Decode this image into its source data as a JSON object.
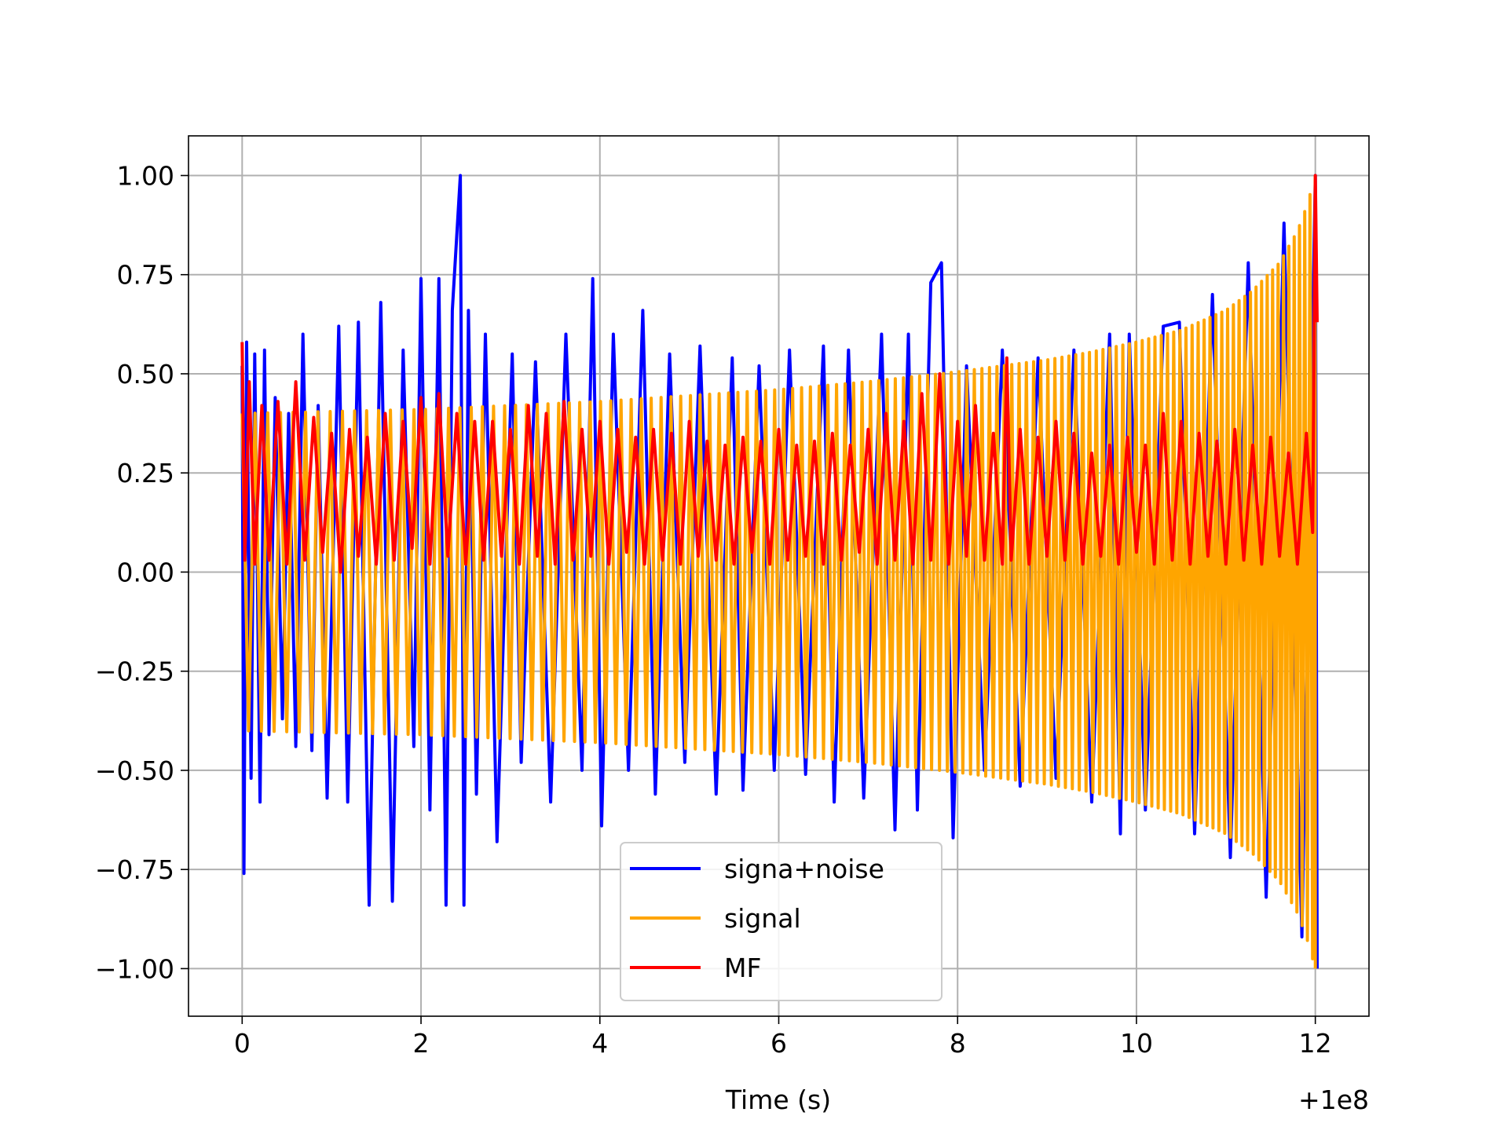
{
  "chart_data": {
    "type": "line",
    "title": "",
    "xlabel": "Time (s)",
    "ylabel": "",
    "x_offset_label": "+1e8",
    "xlim": [
      -0.6,
      12.6
    ],
    "ylim": [
      -1.12,
      1.1
    ],
    "x_ticks": [
      0,
      2,
      4,
      6,
      8,
      10,
      12
    ],
    "x_tick_labels": [
      "0",
      "2",
      "4",
      "6",
      "8",
      "10",
      "12"
    ],
    "y_ticks": [
      -1.0,
      -0.75,
      -0.5,
      -0.25,
      0.0,
      0.25,
      0.5,
      0.75,
      1.0
    ],
    "y_tick_labels": [
      "−1.00",
      "−0.75",
      "−0.50",
      "−0.25",
      "0.00",
      "0.25",
      "0.50",
      "0.75",
      "1.00"
    ],
    "grid": true,
    "legend_position": "bottom-center",
    "series": [
      {
        "name": "signa+noise",
        "color": "#0000ff",
        "x": [
          0.0,
          0.02,
          0.05,
          0.1,
          0.14,
          0.2,
          0.25,
          0.3,
          0.37,
          0.45,
          0.52,
          0.6,
          0.68,
          0.78,
          0.85,
          0.95,
          1.08,
          1.18,
          1.3,
          1.42,
          1.55,
          1.68,
          1.8,
          1.92,
          2.0,
          2.1,
          2.2,
          2.28,
          2.35,
          2.44,
          2.48,
          2.53,
          2.62,
          2.72,
          2.85,
          3.02,
          3.12,
          3.28,
          3.45,
          3.62,
          3.8,
          3.92,
          4.02,
          4.15,
          4.32,
          4.48,
          4.62,
          4.78,
          4.95,
          5.12,
          5.3,
          5.48,
          5.6,
          5.78,
          5.95,
          6.12,
          6.3,
          6.5,
          6.62,
          6.78,
          6.95,
          7.15,
          7.3,
          7.45,
          7.55,
          7.7,
          7.82,
          7.95,
          8.1,
          8.3,
          8.5,
          8.7,
          8.9,
          9.1,
          9.3,
          9.5,
          9.7,
          9.82,
          9.92,
          10.1,
          10.3,
          10.48,
          10.65,
          10.85,
          11.05,
          11.25,
          11.45,
          11.65,
          11.85,
          12.0,
          12.02
        ],
        "y": [
          0.52,
          -0.76,
          0.58,
          -0.52,
          0.55,
          -0.58,
          0.56,
          -0.41,
          0.44,
          -0.37,
          0.4,
          -0.44,
          0.6,
          -0.45,
          0.42,
          -0.57,
          0.62,
          -0.58,
          0.63,
          -0.84,
          0.68,
          -0.83,
          0.56,
          -0.44,
          0.74,
          -0.6,
          0.74,
          -0.84,
          0.66,
          1.0,
          -0.84,
          0.66,
          -0.56,
          0.6,
          -0.68,
          0.55,
          -0.48,
          0.53,
          -0.58,
          0.6,
          -0.5,
          0.74,
          -0.64,
          0.6,
          -0.5,
          0.66,
          -0.56,
          0.55,
          -0.48,
          0.57,
          -0.56,
          0.54,
          -0.55,
          0.52,
          -0.5,
          0.56,
          -0.51,
          0.57,
          -0.58,
          0.56,
          -0.57,
          0.6,
          -0.65,
          0.6,
          -0.6,
          0.73,
          0.78,
          -0.67,
          0.52,
          -0.5,
          0.56,
          -0.54,
          0.54,
          -0.52,
          0.56,
          -0.58,
          0.6,
          -0.66,
          0.6,
          -0.6,
          0.62,
          0.63,
          -0.66,
          0.7,
          -0.72,
          0.78,
          -0.82,
          0.88,
          -0.92,
          1.0,
          -1.0
        ]
      },
      {
        "name": "signal",
        "color": "#ffa500",
        "x": [
          0.0,
          1.0,
          2.0,
          3.0,
          4.0,
          5.0,
          6.0,
          7.0,
          8.0,
          8.5,
          9.0,
          9.5,
          10.0,
          10.5,
          11.0,
          11.3,
          11.6,
          11.8,
          11.9,
          11.95,
          12.0
        ],
        "y": [
          0.4,
          0.405,
          0.41,
          0.42,
          0.43,
          0.445,
          0.46,
          0.48,
          0.505,
          0.52,
          0.535,
          0.555,
          0.58,
          0.61,
          0.66,
          0.71,
          0.78,
          0.86,
          0.92,
          0.96,
          1.0
        ]
      },
      {
        "name": "MF",
        "color": "#ff0000",
        "x": [
          0.0,
          0.03,
          0.08,
          0.14,
          0.22,
          0.3,
          0.4,
          0.5,
          0.6,
          0.7,
          0.8,
          0.9,
          1.0,
          1.1,
          1.2,
          1.3,
          1.4,
          1.5,
          1.6,
          1.7,
          1.8,
          1.9,
          2.0,
          2.1,
          2.2,
          2.3,
          2.4,
          2.5,
          2.6,
          2.7,
          2.8,
          2.9,
          3.0,
          3.1,
          3.2,
          3.3,
          3.4,
          3.5,
          3.6,
          3.7,
          3.8,
          3.9,
          4.0,
          4.1,
          4.2,
          4.3,
          4.4,
          4.5,
          4.6,
          4.7,
          4.8,
          4.9,
          5.0,
          5.1,
          5.2,
          5.3,
          5.4,
          5.5,
          5.6,
          5.7,
          5.8,
          5.9,
          6.0,
          6.1,
          6.2,
          6.3,
          6.4,
          6.5,
          6.6,
          6.7,
          6.8,
          6.9,
          7.0,
          7.1,
          7.2,
          7.3,
          7.4,
          7.5,
          7.6,
          7.7,
          7.8,
          7.9,
          8.0,
          8.1,
          8.2,
          8.3,
          8.4,
          8.5,
          8.55,
          8.6,
          8.7,
          8.8,
          8.9,
          9.0,
          9.1,
          9.2,
          9.3,
          9.4,
          9.5,
          9.6,
          9.7,
          9.8,
          9.9,
          10.0,
          10.1,
          10.2,
          10.3,
          10.4,
          10.5,
          10.6,
          10.7,
          10.8,
          10.9,
          11.0,
          11.1,
          11.2,
          11.3,
          11.4,
          11.5,
          11.6,
          11.7,
          11.8,
          11.9,
          11.97,
          12.0,
          12.02
        ],
        "y": [
          0.58,
          0.03,
          0.48,
          0.02,
          0.42,
          0.03,
          0.43,
          0.02,
          0.48,
          0.03,
          0.39,
          0.05,
          0.35,
          0.0,
          0.36,
          0.04,
          0.34,
          0.02,
          0.4,
          0.03,
          0.38,
          0.06,
          0.44,
          0.02,
          0.45,
          0.04,
          0.4,
          0.02,
          0.38,
          0.03,
          0.38,
          0.04,
          0.36,
          0.02,
          0.42,
          0.04,
          0.4,
          0.02,
          0.43,
          0.03,
          0.36,
          0.04,
          0.38,
          0.02,
          0.36,
          0.05,
          0.34,
          0.02,
          0.36,
          0.03,
          0.35,
          0.02,
          0.38,
          0.04,
          0.33,
          0.03,
          0.32,
          0.02,
          0.34,
          0.05,
          0.33,
          0.02,
          0.36,
          0.03,
          0.32,
          0.04,
          0.33,
          0.02,
          0.35,
          0.03,
          0.32,
          0.05,
          0.36,
          0.02,
          0.4,
          0.03,
          0.38,
          0.02,
          0.45,
          0.03,
          0.5,
          0.02,
          0.38,
          0.04,
          0.42,
          0.03,
          0.35,
          0.02,
          0.54,
          0.03,
          0.36,
          0.02,
          0.34,
          0.04,
          0.38,
          0.03,
          0.35,
          0.02,
          0.3,
          0.04,
          0.32,
          0.02,
          0.34,
          0.05,
          0.32,
          0.02,
          0.4,
          0.03,
          0.38,
          0.02,
          0.35,
          0.04,
          0.33,
          0.02,
          0.36,
          0.03,
          0.32,
          0.02,
          0.34,
          0.04,
          0.3,
          0.02,
          0.35,
          0.1,
          1.0,
          0.63
        ]
      }
    ]
  }
}
